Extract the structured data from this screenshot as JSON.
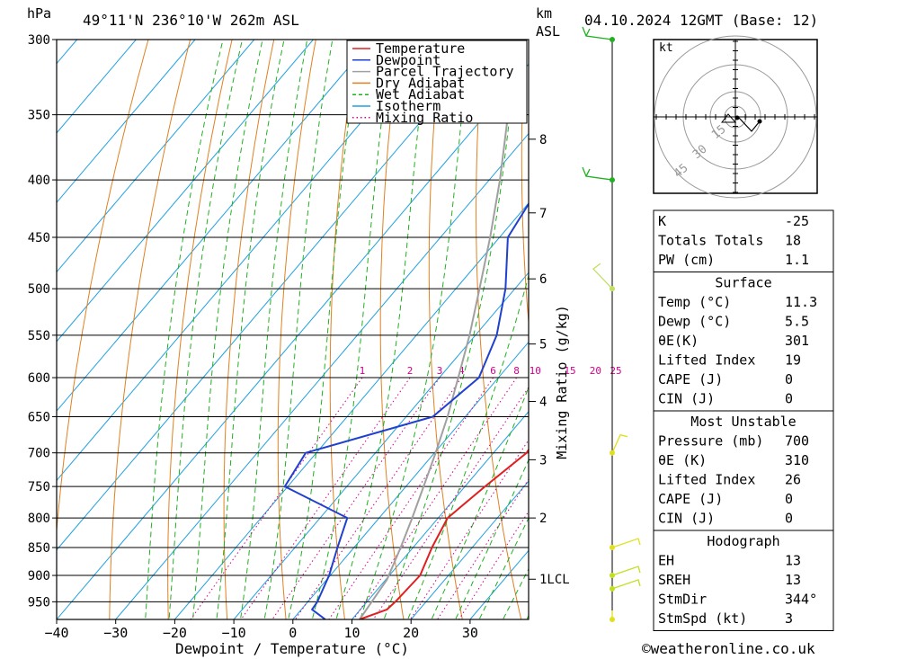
{
  "header": {
    "hpa_label": "hPa",
    "location": "49°11'N  236°10'W  262m  ASL",
    "km_label": "km",
    "asl_label": "ASL",
    "datetime": "04.10.2024  12GMT  (Base: 12)"
  },
  "chart_data": {
    "type": "line",
    "chart_kind": "skew-T log-P",
    "xlabel": "Dewpoint / Temperature (°C)",
    "ylabel": "hPa",
    "x_ticks": [
      -40,
      -30,
      -20,
      -10,
      0,
      10,
      20,
      30
    ],
    "xlim": [
      -40,
      40
    ],
    "ylim": [
      300,
      985
    ],
    "y_scale": "log",
    "pressure_levels": [
      300,
      350,
      400,
      450,
      500,
      550,
      600,
      650,
      700,
      750,
      800,
      850,
      900,
      950
    ],
    "km_ticks": [
      {
        "label": "8",
        "p": 368
      },
      {
        "label": "7",
        "p": 428
      },
      {
        "label": "6",
        "p": 490
      },
      {
        "label": "5",
        "p": 560
      },
      {
        "label": "4",
        "p": 630
      },
      {
        "label": "3",
        "p": 710
      },
      {
        "label": "2",
        "p": 800
      },
      {
        "label": "1LCL",
        "p": 907
      }
    ],
    "mixing_ratio_label": "Mixing Ratio (g/kg)",
    "mixing_ratio_values": [
      1,
      2,
      3,
      4,
      6,
      8,
      10,
      15,
      20,
      25
    ],
    "series": [
      {
        "name": "Temperature",
        "color": "#e02020",
        "points": [
          [
            985,
            11.3
          ],
          [
            965,
            14.5
          ],
          [
            950,
            14.8
          ],
          [
            900,
            15.2
          ],
          [
            850,
            13.2
          ],
          [
            800,
            11.6
          ],
          [
            750,
            13.4
          ],
          [
            700,
            15.6
          ],
          [
            650,
            14.4
          ],
          [
            600,
            11.8
          ],
          [
            550,
            8.6
          ],
          [
            500,
            4.4
          ],
          [
            450,
            -1.6
          ],
          [
            400,
            -8.8
          ],
          [
            350,
            -16.4
          ],
          [
            300,
            -24.6
          ]
        ]
      },
      {
        "name": "Dewpoint",
        "color": "#2040d0",
        "points": [
          [
            985,
            5.5
          ],
          [
            965,
            1.8
          ],
          [
            950,
            1.6
          ],
          [
            900,
            -0.2
          ],
          [
            850,
            -2.8
          ],
          [
            800,
            -5.4
          ],
          [
            750,
            -20.5
          ],
          [
            700,
            -21.8
          ],
          [
            650,
            -5.5
          ],
          [
            600,
            -3.3
          ],
          [
            550,
            -6.4
          ],
          [
            500,
            -11.6
          ],
          [
            450,
            -18.6
          ],
          [
            400,
            -20.8
          ],
          [
            350,
            -29.6
          ],
          [
            300,
            -38.6
          ]
        ]
      },
      {
        "name": "Parcel Trajectory",
        "color": "#a0a0a0",
        "points": [
          [
            985,
            11.3
          ],
          [
            908,
            10.2
          ],
          [
            850,
            7.9
          ],
          [
            800,
            5.6
          ],
          [
            750,
            3.0
          ],
          [
            700,
            0.2
          ],
          [
            650,
            -3.0
          ],
          [
            600,
            -6.8
          ],
          [
            550,
            -11.0
          ],
          [
            500,
            -16.0
          ],
          [
            450,
            -21.6
          ],
          [
            400,
            -28.2
          ],
          [
            350,
            -36.2
          ],
          [
            310,
            -43.4
          ]
        ]
      }
    ],
    "legend": {
      "placement": "top-right",
      "entries": [
        {
          "name": "Temperature",
          "color": "#e02020",
          "style": "solid"
        },
        {
          "name": "Dewpoint",
          "color": "#2040d0",
          "style": "solid"
        },
        {
          "name": "Parcel Trajectory",
          "color": "#a0a0a0",
          "style": "solid"
        },
        {
          "name": "Dry Adiabat",
          "color": "#e08020",
          "style": "solid"
        },
        {
          "name": "Wet Adiabat",
          "color": "#20b020",
          "style": "dashed"
        },
        {
          "name": "Isotherm",
          "color": "#20a0e0",
          "style": "solid"
        },
        {
          "name": "Mixing Ratio",
          "color": "#d0008a",
          "style": "dotted"
        }
      ]
    },
    "wind_barbs": [
      {
        "p": 300,
        "color": "#20b020"
      },
      {
        "p": 400,
        "color": "#20b020"
      },
      {
        "p": 500,
        "color": "#c0e060"
      },
      {
        "p": 700,
        "color": "#e0e020"
      },
      {
        "p": 850,
        "color": "#e0e020"
      },
      {
        "p": 900,
        "color": "#c0e020"
      },
      {
        "p": 925,
        "color": "#c0e020"
      },
      {
        "p": 985,
        "color": "#e0e020"
      }
    ]
  },
  "hodograph": {
    "unit_label": "kt",
    "rings": [
      15,
      30,
      45
    ],
    "ring_labels": [
      "15",
      "30",
      "45"
    ]
  },
  "indices": {
    "general": [
      {
        "label": "K",
        "value": "-25"
      },
      {
        "label": "Totals Totals",
        "value": "18"
      },
      {
        "label": "PW (cm)",
        "value": "1.1"
      }
    ],
    "surface_title": "Surface",
    "surface": [
      {
        "label": "Temp (°C)",
        "value": "11.3"
      },
      {
        "label": "Dewp (°C)",
        "value": "5.5"
      },
      {
        "label": "θE(K)",
        "value": "301"
      },
      {
        "label": "Lifted Index",
        "value": "19"
      },
      {
        "label": "CAPE (J)",
        "value": "0"
      },
      {
        "label": "CIN (J)",
        "value": "0"
      }
    ],
    "mu_title": "Most Unstable",
    "most_unstable": [
      {
        "label": "Pressure (mb)",
        "value": "700"
      },
      {
        "label": "θE (K)",
        "value": "310"
      },
      {
        "label": "Lifted Index",
        "value": "26"
      },
      {
        "label": "CAPE (J)",
        "value": "0"
      },
      {
        "label": "CIN (J)",
        "value": "0"
      }
    ],
    "hodo_title": "Hodograph",
    "hodo_params": [
      {
        "label": "EH",
        "value": "13"
      },
      {
        "label": "SREH",
        "value": "13"
      },
      {
        "label": "StmDir",
        "value": "344°"
      },
      {
        "label": "StmSpd (kt)",
        "value": "3"
      }
    ]
  },
  "footer": {
    "copyright": "©weatheronline.co.uk"
  }
}
